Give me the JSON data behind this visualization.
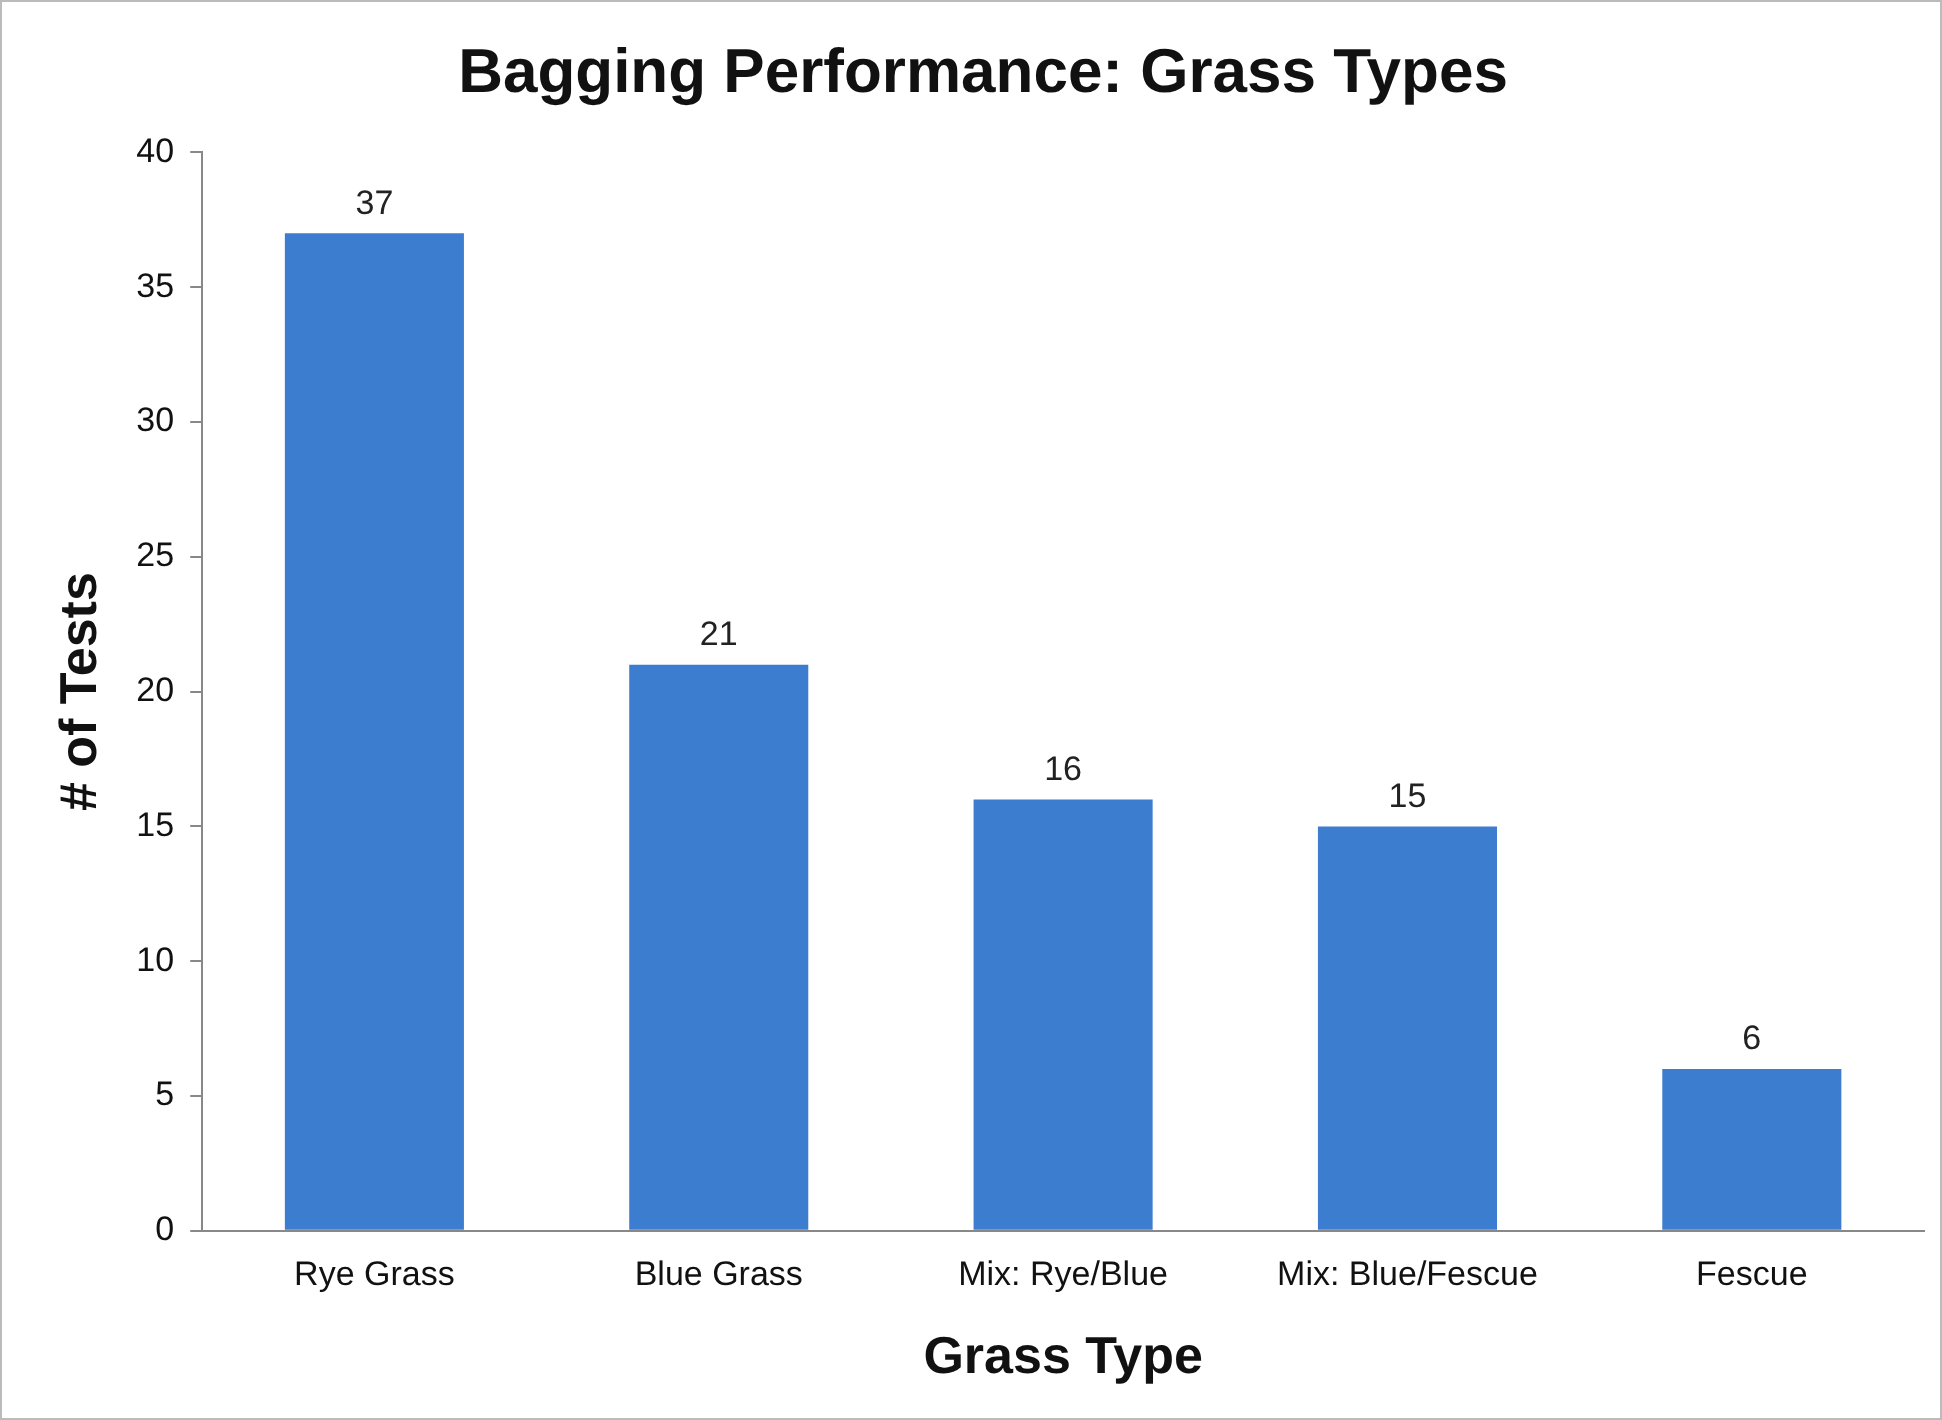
{
  "chart_data": {
    "type": "bar",
    "title": "Bagging Performance: Grass Types",
    "xlabel": "Grass Type",
    "ylabel": "# of Tests",
    "categories": [
      "Rye Grass",
      "Blue Grass",
      "Mix: Rye/Blue",
      "Mix: Blue/Fescue",
      "Fescue"
    ],
    "values": [
      37,
      21,
      16,
      15,
      6
    ],
    "color": "#3d7dd0",
    "ylim": [
      0,
      40
    ],
    "yticks": [
      0,
      5,
      10,
      15,
      20,
      25,
      30,
      35,
      40
    ],
    "grid": false,
    "legend": false,
    "data_labels": true
  }
}
